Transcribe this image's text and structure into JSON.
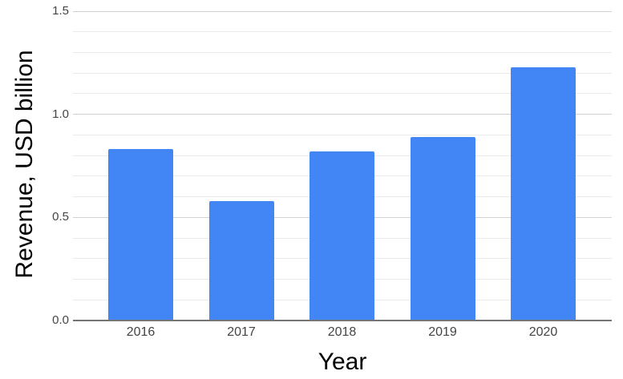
{
  "chart_data": {
    "type": "bar",
    "title": "",
    "xlabel": "Year",
    "ylabel": "Revenue, USD billion",
    "categories": [
      "2016",
      "2017",
      "2018",
      "2019",
      "2020"
    ],
    "values": [
      0.83,
      0.58,
      0.82,
      0.89,
      1.23
    ],
    "ylim": [
      0,
      1.5
    ],
    "ytick_values": [
      0,
      0.5,
      1.0,
      1.5
    ],
    "ytick_labels": [
      "0.0",
      "0.5",
      "1.0",
      "1.5"
    ],
    "minor_grid_step": 0.1,
    "grid": true,
    "legend_position": "none",
    "colors": {
      "bar": "#4285f4",
      "axis_line": "#757575",
      "major_gridline": "#d2d2d2",
      "minor_gridline": "#ebebeb",
      "tick_label": "#444444",
      "axis_title": "#000000",
      "background": "#ffffff"
    }
  }
}
